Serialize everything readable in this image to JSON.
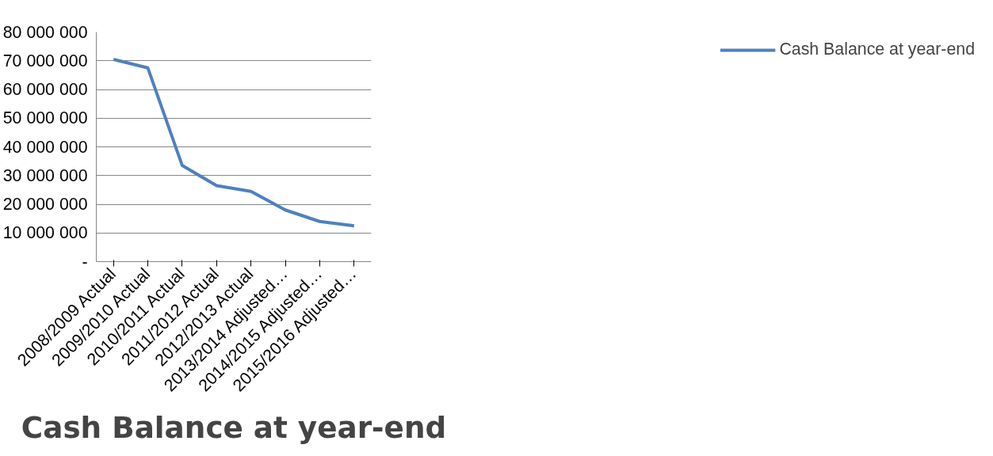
{
  "chart_data": {
    "type": "line",
    "title": "Cash Balance at year-end",
    "categories": [
      "2008/2009 Actual",
      "2009/2010 Actual",
      "2010/2011 Actual",
      "2011/2012 Actual",
      "2012/2013 Actual",
      "2013/2014 Adjusted…",
      "2014/2015 Adjusted…",
      "2015/2016 Adjusted…"
    ],
    "series": [
      {
        "name": "Cash Balance at year-end",
        "color": "#4f81bd",
        "values": [
          70500000,
          67500000,
          33500000,
          26500000,
          24500000,
          18000000,
          14000000,
          12500000
        ]
      }
    ],
    "ylim": [
      0,
      80000000
    ],
    "yticks": [
      {
        "value": 0,
        "label": "-"
      },
      {
        "value": 10000000,
        "label": "10 000 000"
      },
      {
        "value": 20000000,
        "label": "20 000 000"
      },
      {
        "value": 30000000,
        "label": "30 000 000"
      },
      {
        "value": 40000000,
        "label": "40 000 000"
      },
      {
        "value": 50000000,
        "label": "50 000 000"
      },
      {
        "value": 60000000,
        "label": "60 000 000"
      },
      {
        "value": 70000000,
        "label": "70 000 000"
      },
      {
        "value": 80000000,
        "label": "80 000 000"
      }
    ],
    "grid": "y",
    "legend": "right",
    "marker": "none",
    "line_style": "solid"
  }
}
